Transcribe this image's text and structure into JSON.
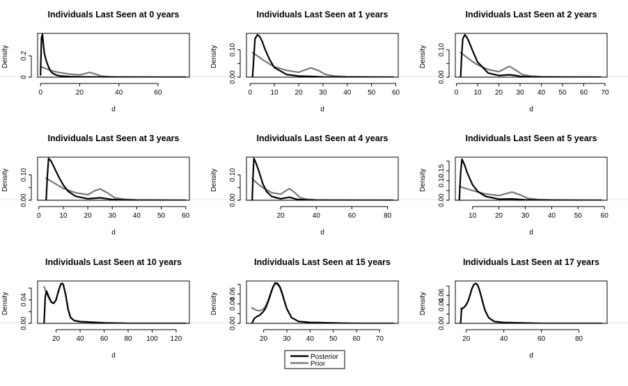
{
  "figure": {
    "colors": {
      "posterior": "#000000",
      "prior": "#777777",
      "separator": "#e0e0e0"
    }
  },
  "legend": {
    "entries": [
      {
        "label": "Posterior",
        "color": "#000000"
      },
      {
        "label": "Prior",
        "color": "#777777"
      }
    ]
  },
  "chart_data": [
    {
      "type": "line",
      "title": "Individuals Last Seen at 0 years",
      "xlabel": "d",
      "ylabel": "Density",
      "xlim": [
        -1.5,
        76
      ],
      "ylim": [
        0,
        0.41
      ],
      "xticks": [
        0,
        20,
        40,
        60
      ],
      "yticks": [
        0.0,
        0.2
      ],
      "series": [
        {
          "name": "Posterior",
          "color": "#000000",
          "x": [
            0,
            0.5,
            1,
            1.5,
            2,
            3,
            4,
            5,
            6,
            8,
            10,
            15,
            20,
            30,
            40,
            60,
            74
          ],
          "y": [
            0.02,
            0.37,
            0.4,
            0.3,
            0.22,
            0.15,
            0.1,
            0.06,
            0.04,
            0.02,
            0.012,
            0.005,
            0.003,
            0.002,
            0.001,
            0.0,
            0.0
          ]
        },
        {
          "name": "Prior",
          "color": "#777777",
          "x": [
            0,
            2,
            5,
            8,
            10,
            15,
            20,
            22,
            25,
            28,
            31,
            35,
            40,
            50,
            60,
            74
          ],
          "y": [
            0.1,
            0.085,
            0.065,
            0.05,
            0.042,
            0.028,
            0.022,
            0.03,
            0.045,
            0.03,
            0.01,
            0.004,
            0.002,
            0.001,
            0.0,
            0.0
          ]
        }
      ]
    },
    {
      "type": "line",
      "title": "Individuals Last Seen at 1 years",
      "xlabel": "d",
      "ylabel": "Density",
      "xlim": [
        -1.5,
        61
      ],
      "ylim": [
        0,
        0.16
      ],
      "xticks": [
        0,
        10,
        20,
        30,
        40,
        50,
        60
      ],
      "yticks": [
        0.0,
        0.05,
        0.1
      ],
      "yticklabels": [
        "0.00",
        "",
        "0.10"
      ],
      "series": [
        {
          "name": "Posterior",
          "color": "#000000",
          "x": [
            1,
            1.5,
            2,
            3,
            4,
            5,
            6,
            8,
            10,
            15,
            20,
            25,
            30,
            40,
            59
          ],
          "y": [
            0.0,
            0.07,
            0.14,
            0.155,
            0.148,
            0.13,
            0.105,
            0.065,
            0.035,
            0.01,
            0.004,
            0.003,
            0.001,
            0.0,
            0.0
          ]
        },
        {
          "name": "Prior",
          "color": "#777777",
          "x": [
            1,
            3,
            5,
            8,
            10,
            15,
            20,
            23,
            25,
            28,
            31,
            35,
            40,
            50,
            59
          ],
          "y": [
            0.09,
            0.078,
            0.065,
            0.048,
            0.038,
            0.025,
            0.018,
            0.028,
            0.034,
            0.025,
            0.01,
            0.004,
            0.002,
            0.001,
            0.0
          ]
        }
      ]
    },
    {
      "type": "line",
      "title": "Individuals Last Seen at 2 years",
      "xlabel": "d",
      "ylabel": "Density",
      "xlim": [
        -0.5,
        71
      ],
      "ylim": [
        0,
        0.16
      ],
      "xticks": [
        0,
        10,
        20,
        30,
        40,
        50,
        60,
        70
      ],
      "yticks": [
        0.0,
        0.05,
        0.1
      ],
      "yticklabels": [
        "0.00",
        "",
        "0.10"
      ],
      "series": [
        {
          "name": "Posterior",
          "color": "#000000",
          "x": [
            2,
            2.5,
            3,
            4,
            5,
            6,
            8,
            10,
            15,
            20,
            25,
            28,
            30,
            35,
            40,
            68
          ],
          "y": [
            0.0,
            0.08,
            0.14,
            0.155,
            0.145,
            0.128,
            0.09,
            0.055,
            0.015,
            0.006,
            0.009,
            0.006,
            0.003,
            0.001,
            0.0,
            0.0
          ]
        },
        {
          "name": "Prior",
          "color": "#777777",
          "x": [
            2,
            4,
            6,
            8,
            10,
            15,
            20,
            23,
            25,
            28,
            31,
            35,
            40,
            50,
            68
          ],
          "y": [
            0.09,
            0.078,
            0.066,
            0.055,
            0.045,
            0.028,
            0.02,
            0.032,
            0.04,
            0.026,
            0.01,
            0.004,
            0.002,
            0.001,
            0.0
          ]
        }
      ]
    },
    {
      "type": "line",
      "title": "Individuals Last Seen at 3 years",
      "xlabel": "d",
      "ylabel": "Density",
      "xlim": [
        -0.5,
        61.5
      ],
      "ylim": [
        0,
        0.17
      ],
      "xticks": [
        0,
        10,
        20,
        30,
        40,
        50,
        60
      ],
      "yticks": [
        0.0,
        0.05,
        0.1
      ],
      "yticklabels": [
        "0.00",
        "",
        "0.10"
      ],
      "series": [
        {
          "name": "Posterior",
          "color": "#000000",
          "x": [
            3,
            3.5,
            4,
            5,
            6,
            8,
            10,
            12,
            15,
            20,
            25,
            28,
            30,
            35,
            40,
            60
          ],
          "y": [
            0.0,
            0.1,
            0.165,
            0.155,
            0.135,
            0.095,
            0.06,
            0.035,
            0.016,
            0.006,
            0.01,
            0.006,
            0.003,
            0.001,
            0.0,
            0.0
          ]
        },
        {
          "name": "Prior",
          "color": "#777777",
          "x": [
            3,
            5,
            8,
            10,
            15,
            20,
            23,
            25,
            28,
            31,
            35,
            40,
            50,
            60
          ],
          "y": [
            0.088,
            0.075,
            0.058,
            0.047,
            0.03,
            0.022,
            0.038,
            0.045,
            0.03,
            0.01,
            0.004,
            0.002,
            0.001,
            0.0
          ]
        }
      ]
    },
    {
      "type": "line",
      "title": "Individuals Last Seen at 4 years",
      "xlabel": "d",
      "ylabel": "Density",
      "xlim": [
        0.8,
        86
      ],
      "ylim": [
        0,
        0.17
      ],
      "xticks": [
        20,
        40,
        60,
        80
      ],
      "yticks": [
        0.0,
        0.05,
        0.1
      ],
      "yticklabels": [
        "0.00",
        "",
        "0.10"
      ],
      "series": [
        {
          "name": "Posterior",
          "color": "#000000",
          "x": [
            4,
            4.5,
            5,
            6,
            8,
            10,
            12,
            15,
            20,
            25,
            28,
            30,
            35,
            40,
            83
          ],
          "y": [
            0.0,
            0.1,
            0.165,
            0.15,
            0.11,
            0.065,
            0.035,
            0.015,
            0.006,
            0.012,
            0.006,
            0.003,
            0.001,
            0.0,
            0.0
          ]
        },
        {
          "name": "Prior",
          "color": "#777777",
          "x": [
            4,
            6,
            8,
            10,
            15,
            20,
            23,
            25,
            28,
            31,
            35,
            40,
            50,
            83
          ],
          "y": [
            0.085,
            0.072,
            0.06,
            0.05,
            0.03,
            0.024,
            0.038,
            0.046,
            0.03,
            0.01,
            0.004,
            0.002,
            0.001,
            0.0
          ]
        }
      ]
    },
    {
      "type": "line",
      "title": "Individuals Last Seen at 5 years",
      "xlabel": "d",
      "ylabel": "Density",
      "xlim": [
        3.5,
        61
      ],
      "ylim": [
        0,
        0.22
      ],
      "xticks": [
        10,
        20,
        30,
        40,
        50,
        60
      ],
      "yticks": [
        0.0,
        0.05,
        0.1,
        0.15,
        0.2
      ],
      "yticklabels": [
        "0.00",
        "",
        "0.10",
        "0.15",
        ""
      ],
      "series": [
        {
          "name": "Posterior",
          "color": "#000000",
          "x": [
            5,
            5.5,
            6,
            7,
            8,
            10,
            12,
            15,
            20,
            25,
            28,
            30,
            35,
            40,
            59
          ],
          "y": [
            0.0,
            0.14,
            0.21,
            0.18,
            0.14,
            0.08,
            0.045,
            0.02,
            0.006,
            0.007,
            0.004,
            0.002,
            0.001,
            0.0,
            0.0
          ]
        },
        {
          "name": "Prior",
          "color": "#777777",
          "x": [
            5,
            7,
            10,
            15,
            20,
            23,
            25,
            28,
            31,
            35,
            40,
            50,
            59
          ],
          "y": [
            0.07,
            0.062,
            0.05,
            0.032,
            0.024,
            0.035,
            0.042,
            0.028,
            0.01,
            0.004,
            0.002,
            0.001,
            0.0
          ]
        }
      ]
    },
    {
      "type": "line",
      "title": "Individuals Last Seen at 10 years",
      "xlabel": "d",
      "ylabel": "Density",
      "xlim": [
        4.6,
        131
      ],
      "ylim": [
        0,
        0.072
      ],
      "xticks": [
        20,
        40,
        60,
        80,
        100,
        120
      ],
      "yticks": [
        0.0,
        0.02,
        0.04,
        0.06
      ],
      "yticklabels": [
        "0.00",
        "",
        "0.04",
        ""
      ],
      "series": [
        {
          "name": "Posterior",
          "color": "#000000",
          "x": [
            10,
            11,
            12,
            14,
            16,
            18,
            20,
            22,
            24,
            25,
            26,
            28,
            30,
            32,
            35,
            40,
            50,
            60,
            80,
            100,
            128
          ],
          "y": [
            0.0,
            0.045,
            0.055,
            0.045,
            0.036,
            0.034,
            0.04,
            0.055,
            0.067,
            0.068,
            0.066,
            0.048,
            0.024,
            0.01,
            0.005,
            0.003,
            0.002,
            0.001,
            0.0,
            0.0,
            0.0
          ]
        },
        {
          "name": "Prior",
          "color": "#777777",
          "x": [
            10,
            12,
            14,
            16,
            18,
            20,
            22,
            24,
            25,
            26,
            28,
            30,
            32,
            35,
            40,
            50,
            60,
            80,
            100,
            128
          ],
          "y": [
            0.062,
            0.052,
            0.043,
            0.036,
            0.034,
            0.04,
            0.055,
            0.067,
            0.068,
            0.066,
            0.048,
            0.024,
            0.01,
            0.005,
            0.003,
            0.002,
            0.001,
            0.0,
            0.0,
            0.0
          ]
        }
      ]
    },
    {
      "type": "line",
      "title": "Individuals Last Seen at 15 years",
      "xlabel": "d",
      "ylabel": "Density",
      "xlim": [
        12.6,
        78
      ],
      "ylim": [
        0,
        0.087
      ],
      "xticks": [
        20,
        30,
        40,
        50,
        60,
        70
      ],
      "yticks": [
        0.0,
        0.02,
        0.04,
        0.06,
        0.08
      ],
      "yticklabels": [
        "0.00",
        "",
        "0.04",
        "0.06",
        ""
      ],
      "series": [
        {
          "name": "Posterior",
          "color": "#000000",
          "x": [
            15,
            15.5,
            16,
            17,
            18,
            19,
            20,
            21,
            22,
            23,
            24,
            25,
            26,
            27,
            28,
            29,
            30,
            32,
            35,
            40,
            50,
            60,
            76
          ],
          "y": [
            0.0,
            0.006,
            0.01,
            0.014,
            0.016,
            0.02,
            0.025,
            0.033,
            0.045,
            0.06,
            0.074,
            0.083,
            0.082,
            0.075,
            0.062,
            0.045,
            0.03,
            0.012,
            0.004,
            0.002,
            0.001,
            0.0,
            0.0
          ]
        },
        {
          "name": "Prior",
          "color": "#777777",
          "x": [
            15,
            16,
            17,
            18,
            19,
            20,
            21,
            22,
            23,
            24,
            25,
            26,
            27,
            28,
            29,
            30,
            32,
            35,
            40,
            50,
            60,
            76
          ],
          "y": [
            0.032,
            0.029,
            0.027,
            0.026,
            0.027,
            0.03,
            0.037,
            0.048,
            0.062,
            0.075,
            0.081,
            0.08,
            0.073,
            0.06,
            0.044,
            0.03,
            0.012,
            0.004,
            0.002,
            0.001,
            0.0,
            0.0
          ]
        }
      ]
    },
    {
      "type": "line",
      "title": "Individuals Last Seen at 17 years",
      "xlabel": "d",
      "ylabel": "Density",
      "xlim": [
        14.2,
        95
      ],
      "ylim": [
        0,
        0.091
      ],
      "xticks": [
        20,
        40,
        60,
        80
      ],
      "yticks": [
        0.0,
        0.02,
        0.04,
        0.06,
        0.08
      ],
      "yticklabels": [
        "0.00",
        "",
        "0.04",
        "0.06",
        ""
      ],
      "series": [
        {
          "name": "Posterior",
          "color": "#000000",
          "x": [
            17,
            17.5,
            18,
            19,
            20,
            21,
            22,
            23,
            24,
            25,
            26,
            27,
            28,
            29,
            30,
            32,
            35,
            40,
            50,
            60,
            92
          ],
          "y": [
            0.0,
            0.03,
            0.032,
            0.035,
            0.04,
            0.048,
            0.06,
            0.074,
            0.083,
            0.086,
            0.083,
            0.072,
            0.058,
            0.042,
            0.028,
            0.012,
            0.004,
            0.002,
            0.001,
            0.0,
            0.0
          ]
        },
        {
          "name": "Prior",
          "color": "#777777",
          "x": [
            17,
            18,
            19,
            20,
            21,
            22,
            23,
            24,
            25,
            26,
            27,
            28,
            29,
            30,
            32,
            35,
            40,
            50,
            60,
            92
          ],
          "y": [
            0.032,
            0.033,
            0.035,
            0.04,
            0.048,
            0.06,
            0.074,
            0.083,
            0.086,
            0.083,
            0.072,
            0.058,
            0.042,
            0.028,
            0.012,
            0.004,
            0.002,
            0.001,
            0.0,
            0.0
          ]
        }
      ]
    }
  ]
}
